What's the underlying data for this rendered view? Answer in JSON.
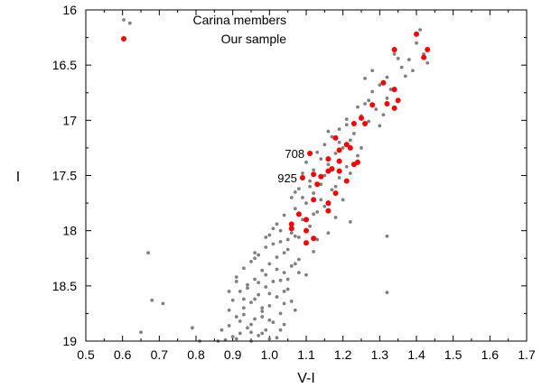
{
  "chart_data": {
    "type": "scatter",
    "xlabel": "V-I",
    "ylabel": "I",
    "xlim": [
      0.5,
      1.7
    ],
    "ylim": [
      19,
      16
    ],
    "y_inverted": true,
    "xticks": [
      "0.5",
      "0.6",
      "0.7",
      "0.8",
      "0.9",
      "1.0",
      "1.1",
      "1.2",
      "1.3",
      "1.4",
      "1.5",
      "1.6",
      "1.7"
    ],
    "yticks": [
      "16",
      "16.5",
      "17",
      "17.5",
      "18",
      "18.5",
      "19"
    ],
    "legend_placement": "top-left",
    "series": [
      {
        "name": "Carina members",
        "color": "#808080",
        "points": [
          [
            1.41,
            16.18
          ],
          [
            1.4,
            16.3
          ],
          [
            1.42,
            16.4
          ],
          [
            1.35,
            16.44
          ],
          [
            1.38,
            16.45
          ],
          [
            1.36,
            16.52
          ],
          [
            1.32,
            16.61
          ],
          [
            1.26,
            16.62
          ],
          [
            1.3,
            16.68
          ],
          [
            1.28,
            16.74
          ],
          [
            1.32,
            16.8
          ],
          [
            1.27,
            16.82
          ],
          [
            1.24,
            16.88
          ],
          [
            1.29,
            16.9
          ],
          [
            1.25,
            16.96
          ],
          [
            1.21,
            16.99
          ],
          [
            1.27,
            17.01
          ],
          [
            1.3,
            17.05
          ],
          [
            1.19,
            17.08
          ],
          [
            1.23,
            17.12
          ],
          [
            1.17,
            17.15
          ],
          [
            1.22,
            17.18
          ],
          [
            1.15,
            17.22
          ],
          [
            1.2,
            17.25
          ],
          [
            1.13,
            17.29
          ],
          [
            1.18,
            17.3
          ],
          [
            1.24,
            17.32
          ],
          [
            1.14,
            17.35
          ],
          [
            1.1,
            17.38
          ],
          [
            1.16,
            17.4
          ],
          [
            1.21,
            17.42
          ],
          [
            1.12,
            17.45
          ],
          [
            1.09,
            17.48
          ],
          [
            1.15,
            17.5
          ],
          [
            1.19,
            17.52
          ],
          [
            1.11,
            17.55
          ],
          [
            1.14,
            17.58
          ],
          [
            1.08,
            17.62
          ],
          [
            1.17,
            17.63
          ],
          [
            1.12,
            17.66
          ],
          [
            1.06,
            17.7
          ],
          [
            1.2,
            17.72
          ],
          [
            1.1,
            17.75
          ],
          [
            1.15,
            17.78
          ],
          [
            1.07,
            17.8
          ],
          [
            1.13,
            17.83
          ],
          [
            1.04,
            17.86
          ],
          [
            1.18,
            17.88
          ],
          [
            1.09,
            17.9
          ],
          [
            1.22,
            17.92
          ],
          [
            1.02,
            17.94
          ],
          [
            1.11,
            17.96
          ],
          [
            1.06,
            17.99
          ],
          [
            1.16,
            18.02
          ],
          [
            1.0,
            18.04
          ],
          [
            1.08,
            18.06
          ],
          [
            1.13,
            18.08
          ],
          [
            1.03,
            18.1
          ],
          [
            1.1,
            18.12
          ],
          [
            0.99,
            18.15
          ],
          [
            1.05,
            18.17
          ],
          [
            1.12,
            18.19
          ],
          [
            0.97,
            18.22
          ],
          [
            1.02,
            18.24
          ],
          [
            1.08,
            18.26
          ],
          [
            0.95,
            18.28
          ],
          [
            1.0,
            18.3
          ],
          [
            1.06,
            18.32
          ],
          [
            0.93,
            18.34
          ],
          [
            0.98,
            18.36
          ],
          [
            1.04,
            18.38
          ],
          [
            1.1,
            18.4
          ],
          [
            0.91,
            18.42
          ],
          [
            0.96,
            18.44
          ],
          [
            1.01,
            18.46
          ],
          [
            0.94,
            18.49
          ],
          [
            0.99,
            18.51
          ],
          [
            1.05,
            18.53
          ],
          [
            0.92,
            18.55
          ],
          [
            0.97,
            18.58
          ],
          [
            1.02,
            18.6
          ],
          [
            0.9,
            18.63
          ],
          [
            0.95,
            18.65
          ],
          [
            1.0,
            18.68
          ],
          [
            0.93,
            18.7
          ],
          [
            0.98,
            18.73
          ],
          [
            1.03,
            18.75
          ],
          [
            0.91,
            18.78
          ],
          [
            0.96,
            18.8
          ],
          [
            1.01,
            18.83
          ],
          [
            0.89,
            18.86
          ],
          [
            0.94,
            18.88
          ],
          [
            0.99,
            18.9
          ],
          [
            0.92,
            18.93
          ],
          [
            0.97,
            18.95
          ],
          [
            1.02,
            18.97
          ],
          [
            0.88,
            18.99
          ],
          [
            0.95,
            19.0
          ],
          [
            1.0,
            18.98
          ],
          [
            0.9,
            18.96
          ],
          [
            1.06,
            17.95
          ],
          [
            1.03,
            18.0
          ],
          [
            1.07,
            18.05
          ],
          [
            1.01,
            18.12
          ],
          [
            1.04,
            18.2
          ],
          [
            0.96,
            18.25
          ],
          [
            1.07,
            18.3
          ],
          [
            1.02,
            18.35
          ],
          [
            0.99,
            18.4
          ],
          [
            1.03,
            18.45
          ],
          [
            0.94,
            18.52
          ],
          [
            1.0,
            18.57
          ],
          [
            0.96,
            18.62
          ],
          [
            1.04,
            18.66
          ],
          [
            0.98,
            18.7
          ],
          [
            0.93,
            18.76
          ],
          [
            1.0,
            18.81
          ],
          [
            0.95,
            18.85
          ],
          [
            0.98,
            18.93
          ],
          [
            1.04,
            18.55
          ],
          [
            0.87,
            18.9
          ],
          [
            0.86,
            19.0
          ],
          [
            0.91,
            18.98
          ],
          [
            0.89,
            18.72
          ],
          [
            0.93,
            18.62
          ],
          [
            1.05,
            18.44
          ],
          [
            0.96,
            18.2
          ],
          [
            0.99,
            18.06
          ],
          [
            1.01,
            17.98
          ],
          [
            1.09,
            17.7
          ],
          [
            1.14,
            17.72
          ],
          [
            1.18,
            17.6
          ],
          [
            1.22,
            17.48
          ],
          [
            1.25,
            17.25
          ],
          [
            1.11,
            17.6
          ],
          [
            1.07,
            17.65
          ],
          [
            1.19,
            17.2
          ],
          [
            1.16,
            17.1
          ],
          [
            1.26,
            16.85
          ],
          [
            1.31,
            16.95
          ],
          [
            1.28,
            16.55
          ],
          [
            1.33,
            16.72
          ],
          [
            1.37,
            16.6
          ],
          [
            1.43,
            16.48
          ],
          [
            1.34,
            16.4
          ],
          [
            1.39,
            16.55
          ],
          [
            1.21,
            17.04
          ],
          [
            1.12,
            17.85
          ],
          [
            1.05,
            18.08
          ],
          [
            0.97,
            18.47
          ],
          [
            0.95,
            18.92
          ],
          [
            0.92,
            18.82
          ],
          [
            1.06,
            18.02
          ],
          [
            0.91,
            18.46
          ],
          [
            0.89,
            18.55
          ],
          [
            1.32,
            18.05
          ],
          [
            1.32,
            18.56
          ],
          [
            0.67,
            18.2
          ],
          [
            0.68,
            18.63
          ],
          [
            0.71,
            18.66
          ],
          [
            0.65,
            18.92
          ],
          [
            0.79,
            18.88
          ],
          [
            0.81,
            19.0
          ],
          [
            0.62,
            16.12
          ],
          [
            1.08,
            18.38
          ],
          [
            1.03,
            18.9
          ],
          [
            1.07,
            18.72
          ],
          [
            1.04,
            18.85
          ],
          [
            0.98,
            18.78
          ],
          [
            1.06,
            18.64
          ]
        ]
      },
      {
        "name": "Our sample",
        "color": "#ff0000",
        "points": [
          [
            1.4,
            16.22
          ],
          [
            1.43,
            16.36
          ],
          [
            1.34,
            16.36
          ],
          [
            1.42,
            16.43
          ],
          [
            1.31,
            16.66
          ],
          [
            1.34,
            16.72
          ],
          [
            1.35,
            16.82
          ],
          [
            1.32,
            16.85
          ],
          [
            1.28,
            16.86
          ],
          [
            1.34,
            16.89
          ],
          [
            1.25,
            16.98
          ],
          [
            1.23,
            17.03
          ],
          [
            1.26,
            17.03
          ],
          [
            1.18,
            17.16
          ],
          [
            1.21,
            17.22
          ],
          [
            1.22,
            17.25
          ],
          [
            1.19,
            17.27
          ],
          [
            1.11,
            17.3
          ],
          [
            1.16,
            17.35
          ],
          [
            1.19,
            17.37
          ],
          [
            1.24,
            17.38
          ],
          [
            1.23,
            17.4
          ],
          [
            1.17,
            17.44
          ],
          [
            1.16,
            17.46
          ],
          [
            1.19,
            17.46
          ],
          [
            1.12,
            17.49
          ],
          [
            1.14,
            17.51
          ],
          [
            1.09,
            17.52
          ],
          [
            1.21,
            17.55
          ],
          [
            1.13,
            17.58
          ],
          [
            1.18,
            17.66
          ],
          [
            1.12,
            17.72
          ],
          [
            1.16,
            17.75
          ],
          [
            1.16,
            17.82
          ],
          [
            1.08,
            17.85
          ],
          [
            1.1,
            17.9
          ],
          [
            1.06,
            17.94
          ],
          [
            1.06,
            17.98
          ],
          [
            1.1,
            18.0
          ],
          [
            1.12,
            18.07
          ],
          [
            1.1,
            18.11
          ]
        ]
      }
    ],
    "annotations": [
      {
        "text": "708",
        "x": 1.11,
        "y": 17.3
      },
      {
        "text": "925",
        "x": 1.09,
        "y": 17.52
      }
    ]
  }
}
